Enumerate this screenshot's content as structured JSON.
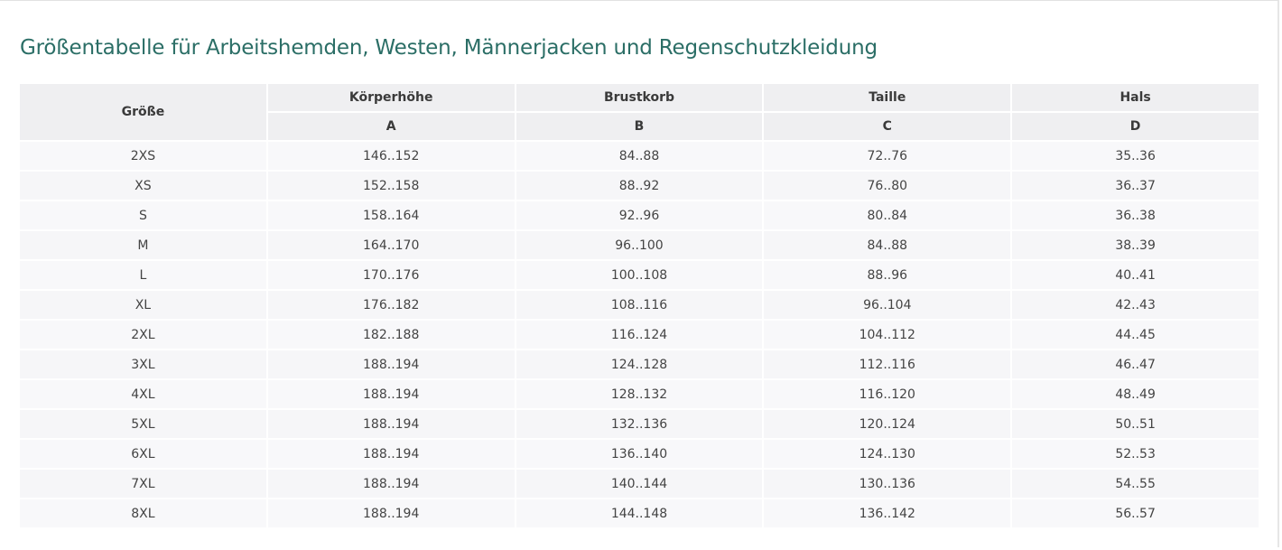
{
  "title": "Größentabelle für Arbeitshemden, Westen, Männerjacken und Regenschutzkleidung",
  "table": {
    "size_header": "Größe",
    "columns": [
      {
        "label": "Körperhöhe",
        "code": "A"
      },
      {
        "label": "Brustkorb",
        "code": "B"
      },
      {
        "label": "Taille",
        "code": "C"
      },
      {
        "label": "Hals",
        "code": "D"
      }
    ],
    "rows": [
      [
        "2XS",
        "146..152",
        "84..88",
        "72..76",
        "35..36"
      ],
      [
        "XS",
        "152..158",
        "88..92",
        "76..80",
        "36..37"
      ],
      [
        "S",
        "158..164",
        "92..96",
        "80..84",
        "36..38"
      ],
      [
        "M",
        "164..170",
        "96..100",
        "84..88",
        "38..39"
      ],
      [
        "L",
        "170..176",
        "100..108",
        "88..96",
        "40..41"
      ],
      [
        "XL",
        "176..182",
        "108..116",
        "96..104",
        "42..43"
      ],
      [
        "2XL",
        "182..188",
        "116..124",
        "104..112",
        "44..45"
      ],
      [
        "3XL",
        "188..194",
        "124..128",
        "112..116",
        "46..47"
      ],
      [
        "4XL",
        "188..194",
        "128..132",
        "116..120",
        "48..49"
      ],
      [
        "5XL",
        "188..194",
        "132..136",
        "120..124",
        "50..51"
      ],
      [
        "6XL",
        "188..194",
        "136..140",
        "124..130",
        "52..53"
      ],
      [
        "7XL",
        "188..194",
        "140..144",
        "130..136",
        "54..55"
      ],
      [
        "8XL",
        "188..194",
        "144..148",
        "136..142",
        "56..57"
      ]
    ]
  },
  "colors": {
    "title": "#2b6e66",
    "header_bg": "#efeff1",
    "row_bg": "#f8f8fa"
  }
}
